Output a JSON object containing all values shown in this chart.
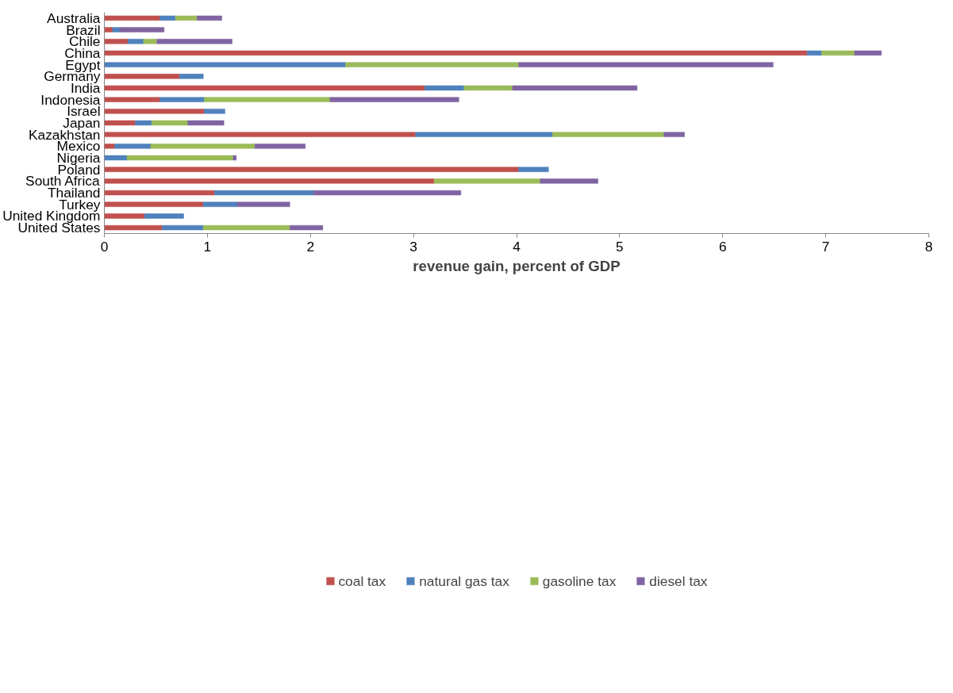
{
  "chart_data": {
    "type": "bar",
    "orientation": "horizontal",
    "stacked": true,
    "xlabel": "revenue gain, percent of GDP",
    "categories": [
      "Australia",
      "Brazil",
      "Chile",
      "China",
      "Egypt",
      "Germany",
      "India",
      "Indonesia",
      "Israel",
      "Japan",
      "Kazakhstan",
      "Mexico",
      "Nigeria",
      "Poland",
      "South Africa",
      "Thailand",
      "Turkey",
      "United Kingdom",
      "United States"
    ],
    "series": [
      {
        "name": "coal tax",
        "color": "#c0504d",
        "values": [
          0.54,
          0.08,
          0.23,
          6.82,
          null,
          0.73,
          3.11,
          0.54,
          0.97,
          0.3,
          3.02,
          0.1,
          null,
          4.02,
          3.2,
          1.07,
          0.96,
          0.39,
          0.56
        ]
      },
      {
        "name": "natural gas tax",
        "color": "#4f81bd",
        "values": [
          0.15,
          0.07,
          0.15,
          0.14,
          2.34,
          0.23,
          0.38,
          0.43,
          0.2,
          0.16,
          1.33,
          0.35,
          0.22,
          0.29,
          null,
          0.96,
          0.33,
          0.38,
          0.4
        ]
      },
      {
        "name": "gasoline tax",
        "color": "#9bbb59",
        "values": [
          0.21,
          null,
          0.13,
          0.32,
          1.68,
          null,
          0.47,
          1.22,
          null,
          0.35,
          1.08,
          1.01,
          1.03,
          null,
          1.03,
          null,
          null,
          null,
          0.84
        ]
      },
      {
        "name": "diesel tax",
        "color": "#8064a2",
        "values": [
          0.24,
          0.43,
          0.73,
          0.26,
          2.47,
          null,
          1.21,
          1.25,
          null,
          0.35,
          0.2,
          0.49,
          0.03,
          null,
          0.56,
          1.43,
          0.51,
          null,
          0.32
        ]
      }
    ],
    "xlim": [
      0,
      8
    ],
    "xticks": [
      0,
      1,
      2,
      3,
      4,
      5,
      6,
      7,
      8
    ],
    "grid": false,
    "legend": "bottom"
  }
}
